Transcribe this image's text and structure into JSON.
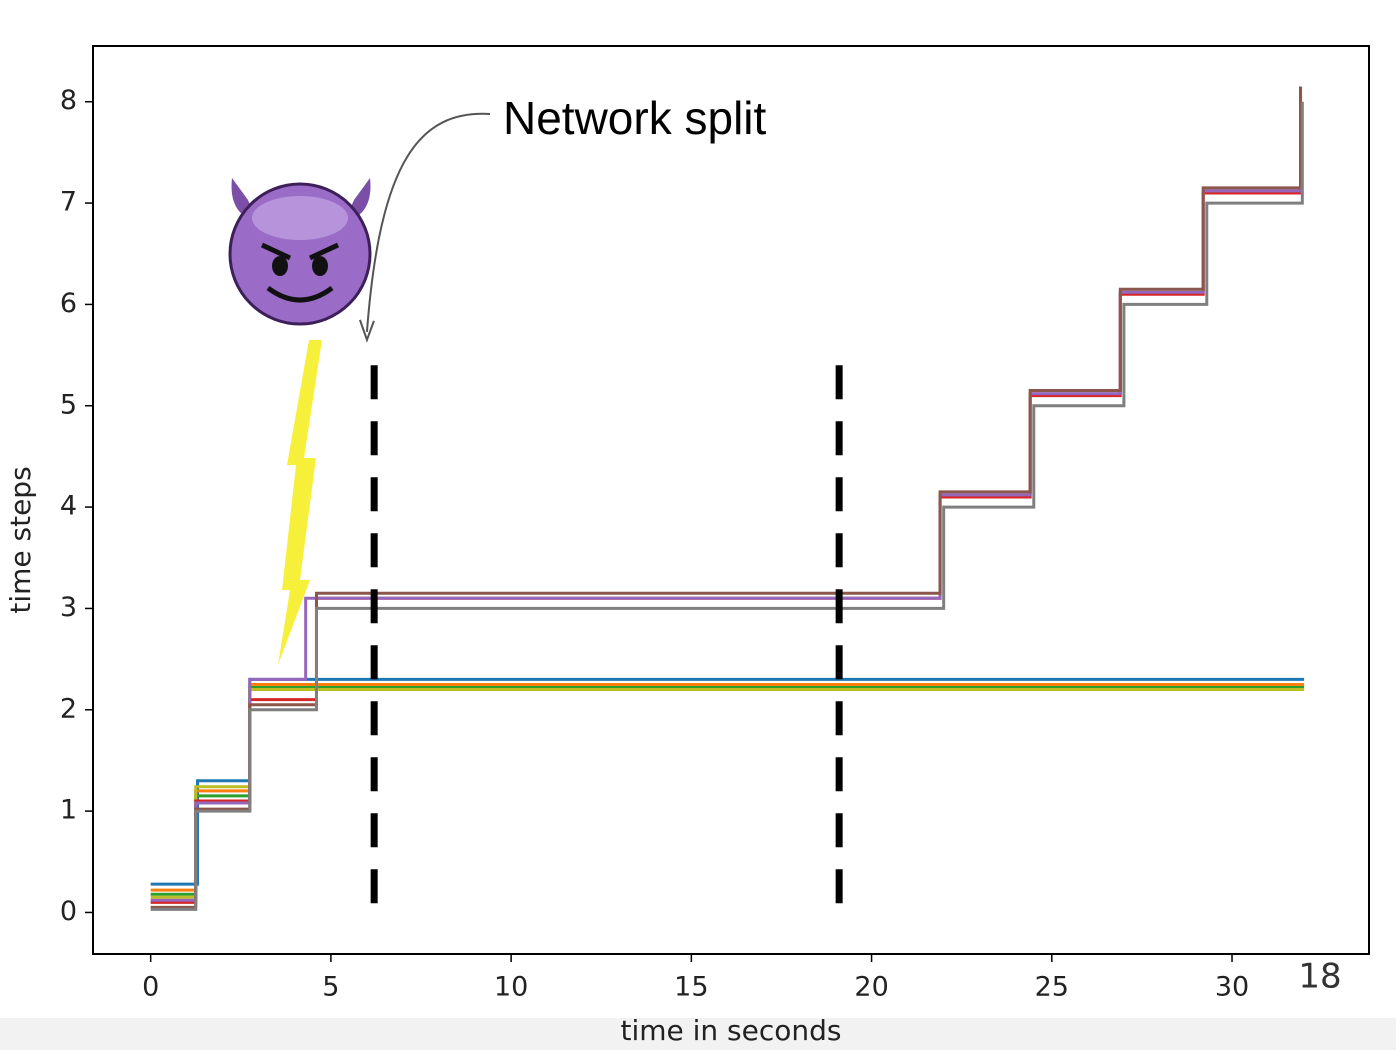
{
  "chart_data": {
    "type": "line",
    "step": "post",
    "xlabel": "time in seconds",
    "ylabel": "time steps",
    "xlim": [
      -1.6,
      33.8
    ],
    "ylim": [
      -0.41,
      8.55
    ],
    "xticks": [
      0,
      5,
      10,
      15,
      20,
      25,
      30
    ],
    "yticks": [
      0,
      1,
      2,
      3,
      4,
      5,
      6,
      7,
      8
    ],
    "grid": false,
    "series": [
      {
        "color": "#1f77b4",
        "x": [
          0,
          1.3,
          2.75,
          32.0
        ],
        "values": [
          0.28,
          1.3,
          2.3,
          2.3
        ]
      },
      {
        "color": "#ff7f0e",
        "x": [
          0,
          1.25,
          2.75,
          32.0
        ],
        "values": [
          0.22,
          1.2,
          2.25,
          2.25
        ]
      },
      {
        "color": "#2ca02c",
        "x": [
          0,
          1.25,
          2.75,
          32.0
        ],
        "values": [
          0.18,
          1.15,
          2.22,
          2.22
        ]
      },
      {
        "color": "#bcbd22",
        "x": [
          0,
          1.25,
          2.75,
          32.0
        ],
        "values": [
          0.15,
          1.24,
          2.2,
          2.2
        ]
      },
      {
        "color": "#d62728",
        "x": [
          0,
          1.25,
          2.75,
          4.6,
          21.9,
          24.4,
          26.9,
          29.2,
          31.9
        ],
        "values": [
          0.1,
          1.1,
          2.1,
          3.1,
          4.1,
          5.1,
          6.1,
          7.1,
          8.1
        ]
      },
      {
        "color": "#9467bd",
        "x": [
          0,
          1.25,
          2.75,
          4.3,
          21.9,
          24.4,
          26.9,
          29.2,
          31.9
        ],
        "values": [
          0.12,
          1.08,
          2.3,
          3.1,
          4.12,
          5.12,
          6.12,
          7.12,
          8.12
        ]
      },
      {
        "color": "#8c564b",
        "x": [
          0,
          1.25,
          2.75,
          4.6,
          21.9,
          24.4,
          26.9,
          29.2,
          31.9
        ],
        "values": [
          0.05,
          1.02,
          2.05,
          3.15,
          4.15,
          5.15,
          6.15,
          7.15,
          8.15
        ]
      },
      {
        "color": "#7f7f7f",
        "x": [
          0,
          1.25,
          2.75,
          4.6,
          22.0,
          24.5,
          27.0,
          29.3,
          31.95
        ],
        "values": [
          0.03,
          1.0,
          2.0,
          3.0,
          4.0,
          5.0,
          6.0,
          7.0,
          8.0
        ]
      }
    ],
    "split_lines": {
      "x": [
        6.2,
        19.1
      ],
      "y_range": [
        0.05,
        5.4
      ],
      "color": "#000000"
    },
    "annotation": {
      "text": "Network split",
      "x": 6.0,
      "y": 5.65
    }
  },
  "page_number": "18"
}
